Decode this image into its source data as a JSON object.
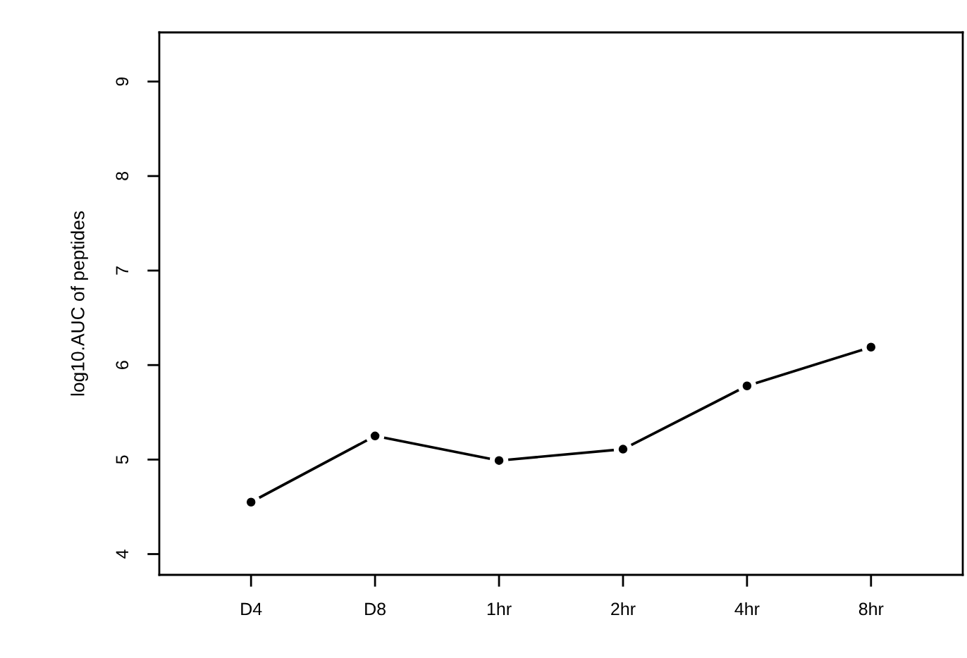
{
  "chart_data": {
    "type": "line",
    "ylabel": "log10.AUC of peptides",
    "categories": [
      "D4",
      "D8",
      "1hr",
      "2hr",
      "4hr",
      "8hr"
    ],
    "series": [
      {
        "color": "#000000",
        "values": [
          4.55,
          5.25,
          4.99,
          5.11,
          5.78,
          6.19
        ]
      }
    ],
    "ylim": [
      3.78,
      9.52
    ],
    "yticks": [
      4,
      5,
      6,
      7,
      8,
      9
    ],
    "marker": "circle",
    "line_style": "solid",
    "grid": false,
    "legend": false
  }
}
